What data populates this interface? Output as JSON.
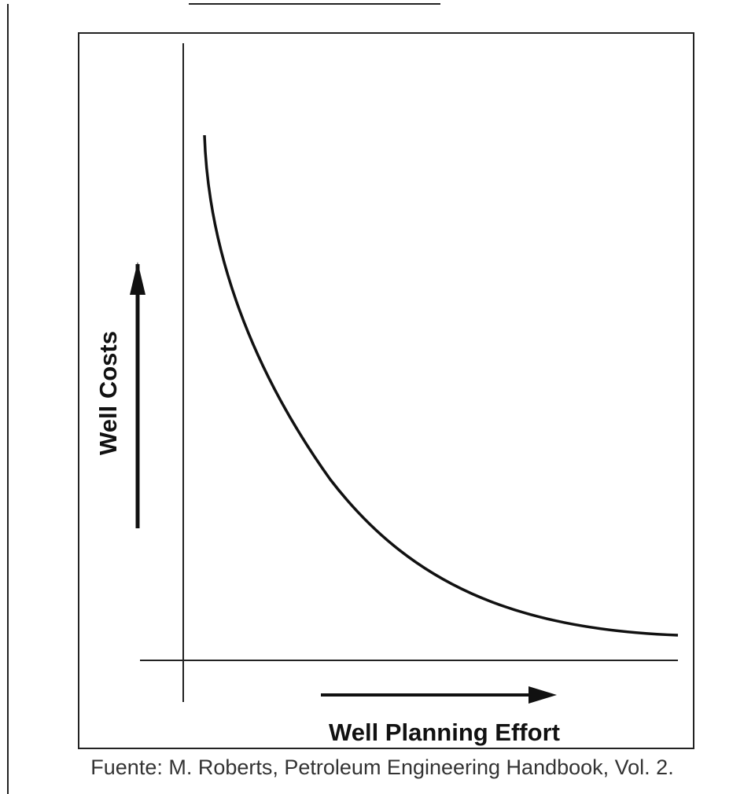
{
  "y_axis_label": "Well Costs",
  "x_axis_label": "Well Planning Effort",
  "caption": "Fuente: M. Roberts, Petroleum Engineering Handbook, Vol. 2."
}
